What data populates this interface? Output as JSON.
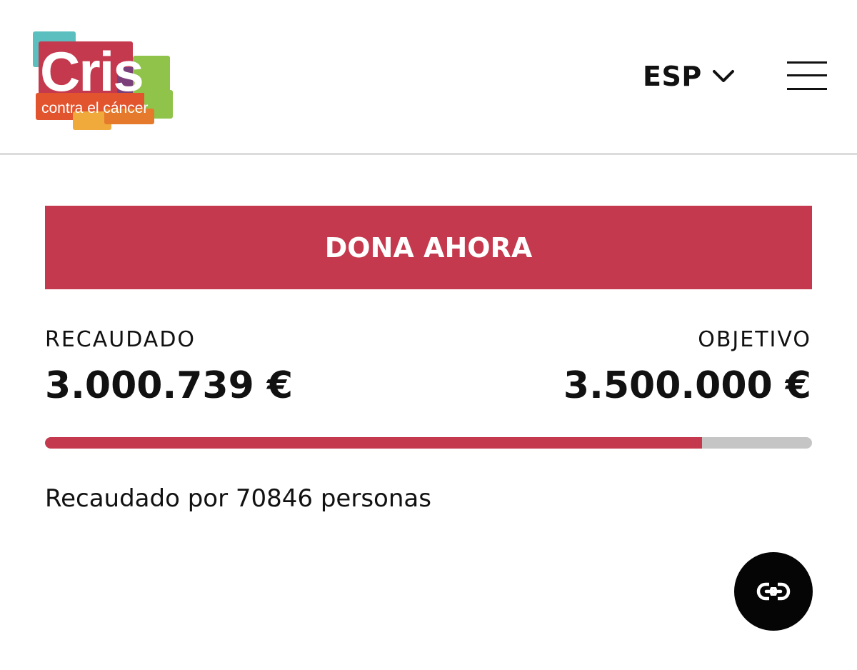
{
  "header": {
    "logo": {
      "wordmark": "Cris",
      "tagline": "contra el cáncer",
      "colors": [
        "#5bbfbf",
        "#c4394d",
        "#e2542e",
        "#f0a93b",
        "#8fc34a",
        "#7b3f7a"
      ]
    },
    "language": {
      "selected": "ESP",
      "icon": "chevron-down-icon"
    },
    "menu": {
      "icon": "hamburger-menu-icon"
    }
  },
  "donate": {
    "label": "DONA AHORA",
    "color": "#c4394d"
  },
  "stats": {
    "raised_label": "RECAUDADO",
    "raised_value": "3.000.739 €",
    "goal_label": "OBJETIVO",
    "goal_value": "3.500.000 €",
    "progress_fraction": 0.857,
    "progress_fill_color": "#c4394d",
    "progress_track_color": "#c5c5c5"
  },
  "supporters_text": "Recaudado por 70846 personas",
  "share": {
    "icon": "link-icon"
  }
}
